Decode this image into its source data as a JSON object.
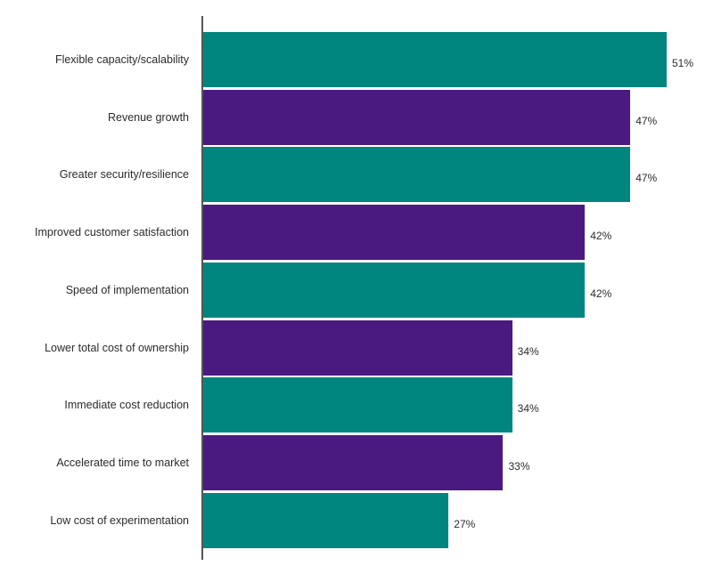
{
  "chart_data": {
    "type": "bar",
    "orientation": "horizontal",
    "categories": [
      "Flexible capacity/scalability",
      "Revenue growth",
      "Greater security/resilience",
      "Improved customer satisfaction",
      "Speed of implementation",
      "Lower total cost of ownership",
      "Immediate cost reduction",
      "Accelerated time to market",
      "Low cost of experimentation"
    ],
    "values": [
      51,
      47,
      47,
      42,
      42,
      34,
      34,
      33,
      27
    ],
    "value_labels": [
      "51%",
      "47%",
      "47%",
      "42%",
      "42%",
      "34%",
      "34%",
      "33%",
      "27%"
    ],
    "unit": "%",
    "xlim": [
      0,
      51
    ],
    "bar_colors": [
      "#00857f",
      "#4a1a80"
    ],
    "grid": false,
    "legend": "none"
  }
}
